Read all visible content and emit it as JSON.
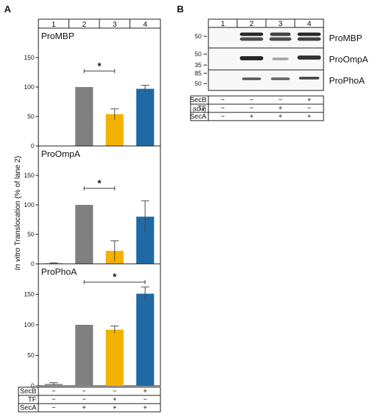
{
  "panel_a": {
    "letter": "A",
    "lanes": [
      "1",
      "2",
      "3",
      "4"
    ],
    "ylabel_italic": "In vitro",
    "ylabel_rest": " Translocation (% of lane 2)",
    "significance_marker": "*"
  },
  "panel_b": {
    "letter": "B",
    "lanes": [
      "1",
      "2",
      "3",
      "4"
    ],
    "kda_unit": "(kDa)",
    "blots": [
      {
        "name": "ProMBP",
        "markers": [
          "50"
        ]
      },
      {
        "name": "ProOmpA",
        "markers": [
          "50",
          "35"
        ]
      },
      {
        "name": "ProPhoA",
        "markers": [
          "85",
          "50"
        ]
      }
    ]
  },
  "conditions": [
    {
      "label": "SecB",
      "values": [
        "−",
        "−",
        "−",
        "+"
      ]
    },
    {
      "label": "TF",
      "values": [
        "−",
        "−",
        "+",
        "−"
      ]
    },
    {
      "label": "SecA",
      "values": [
        "−",
        "+",
        "+",
        "+"
      ]
    }
  ],
  "colors": {
    "lane1": "#8a8a8a",
    "lane2": "#808080",
    "lane3": "#f2b200",
    "lane4": "#1f6aa5",
    "error": "#444444"
  },
  "chart_data": [
    {
      "type": "bar",
      "title": "ProMBP",
      "categories": [
        "1",
        "2",
        "3",
        "4"
      ],
      "values": [
        0,
        100,
        54,
        97
      ],
      "errors": [
        0,
        0,
        9,
        6
      ],
      "ylim": [
        0,
        200
      ],
      "yticks": [
        0,
        50,
        100,
        150
      ],
      "significance": {
        "from": "2",
        "to": "3",
        "label": "*",
        "y": 127
      }
    },
    {
      "type": "bar",
      "title": "ProOmpA",
      "categories": [
        "1",
        "2",
        "3",
        "4"
      ],
      "values": [
        1,
        100,
        22,
        80
      ],
      "errors": [
        0.5,
        0,
        17,
        27
      ],
      "ylim": [
        0,
        200
      ],
      "yticks": [
        0,
        50,
        100,
        150
      ],
      "significance": {
        "from": "2",
        "to": "3",
        "label": "*",
        "y": 128
      }
    },
    {
      "type": "bar",
      "title": "ProPhoA",
      "categories": [
        "1",
        "2",
        "3",
        "4"
      ],
      "values": [
        3,
        100,
        92,
        151
      ],
      "errors": [
        2,
        0,
        6,
        11
      ],
      "ylim": [
        0,
        200
      ],
      "yticks": [
        0,
        50,
        100,
        150
      ],
      "significance": {
        "from": "2",
        "to": "4",
        "label": "*",
        "y": 170
      }
    }
  ]
}
